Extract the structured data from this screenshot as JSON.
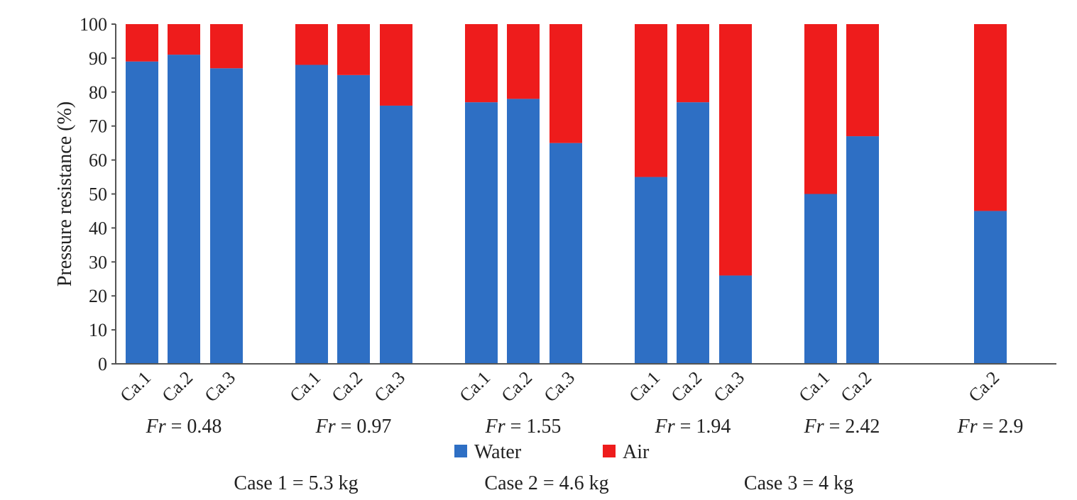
{
  "chart_data": {
    "type": "bar",
    "stacked": true,
    "ylabel": "Pressure resistance (%)",
    "xlabel": "",
    "ylim": [
      0,
      100
    ],
    "yticks": [
      0,
      10,
      20,
      30,
      40,
      50,
      60,
      70,
      80,
      90,
      100
    ],
    "grid": false,
    "legend": {
      "position": "bottom",
      "entries": [
        {
          "name": "Water",
          "color": "#2E6FC4"
        },
        {
          "name": "Air",
          "color": "#EE1C1C"
        }
      ]
    },
    "groups": [
      {
        "fr_prefix": "Fr",
        "fr_value": " = 0.48",
        "bars": [
          {
            "label": "Ca.1",
            "water": 89,
            "air": 11
          },
          {
            "label": "Ca.2",
            "water": 91,
            "air": 9
          },
          {
            "label": "Ca.3",
            "water": 87,
            "air": 13
          }
        ]
      },
      {
        "fr_prefix": "Fr",
        "fr_value": " = 0.97",
        "bars": [
          {
            "label": "Ca.1",
            "water": 88,
            "air": 12
          },
          {
            "label": "Ca.2",
            "water": 85,
            "air": 15
          },
          {
            "label": "Ca.3",
            "water": 76,
            "air": 24
          }
        ]
      },
      {
        "fr_prefix": "Fr",
        "fr_value": " = 1.55",
        "bars": [
          {
            "label": "Ca.1",
            "water": 77,
            "air": 23
          },
          {
            "label": "Ca.2",
            "water": 78,
            "air": 22
          },
          {
            "label": "Ca.3",
            "water": 65,
            "air": 35
          }
        ]
      },
      {
        "fr_prefix": "Fr",
        "fr_value": " = 1.94",
        "bars": [
          {
            "label": "Ca.1",
            "water": 55,
            "air": 45
          },
          {
            "label": "Ca.2",
            "water": 77,
            "air": 23
          },
          {
            "label": "Ca.3",
            "water": 26,
            "air": 74
          }
        ]
      },
      {
        "fr_prefix": "Fr",
        "fr_value": " = 2.42",
        "bars": [
          {
            "label": "Ca.1",
            "water": 50,
            "air": 50
          },
          {
            "label": "Ca.2",
            "water": 67,
            "air": 33
          }
        ]
      },
      {
        "fr_prefix": "Fr",
        "fr_value": " = 2.9",
        "bars": [
          {
            "label": "Ca.2",
            "water": 45,
            "air": 55
          }
        ]
      }
    ],
    "captions": [
      "Case 1 = 5.3 kg",
      "Case 2 = 4.6 kg",
      "Case 3 = 4 kg"
    ]
  }
}
